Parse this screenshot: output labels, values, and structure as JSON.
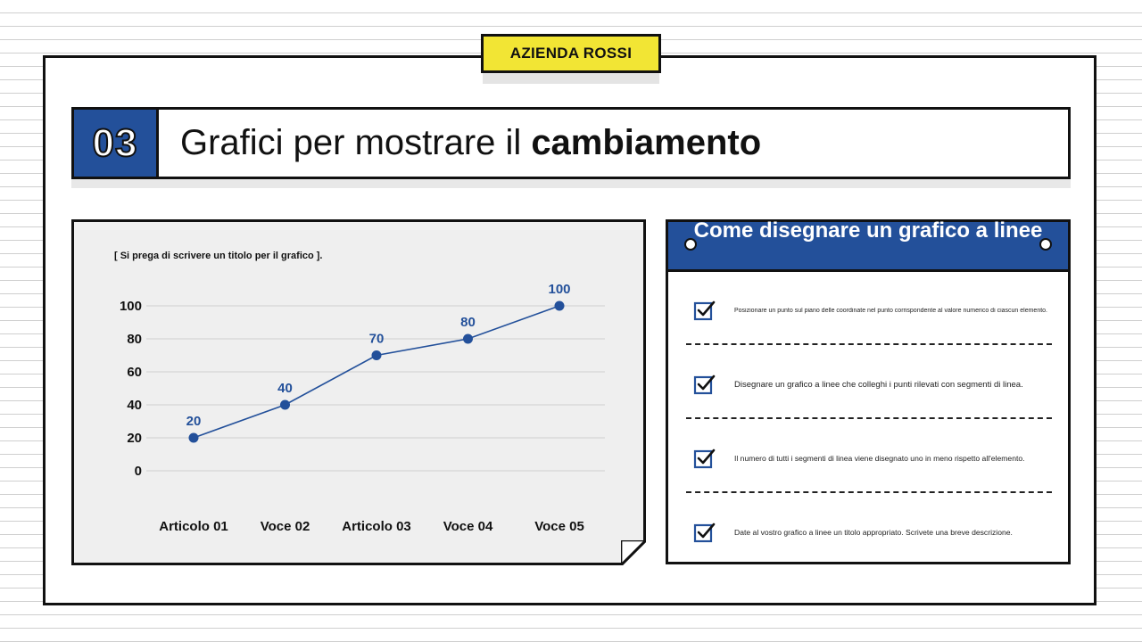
{
  "brand": {
    "label": "AZIENDA ROSSI"
  },
  "section": {
    "number": "03",
    "title_prefix": "Grafici per mostrare il",
    "title_bold": "cambiamento"
  },
  "chart_data": {
    "type": "line",
    "title": "[ Si prega di scrivere un titolo per il grafico ].",
    "categories": [
      "Articolo 01",
      "Voce 02",
      "Articolo 03",
      "Voce 04",
      "Voce 05"
    ],
    "series": [
      {
        "values": [
          20,
          40,
          70,
          80,
          100
        ]
      }
    ],
    "yticks": [
      0,
      20,
      40,
      60,
      80,
      100
    ],
    "ylim": [
      0,
      100
    ],
    "grid": true,
    "line_color": "#23509a",
    "label_color": "#23509a"
  },
  "info": {
    "heading": "Come disegnare un grafico a linee",
    "items": [
      {
        "text": "Posizionare un punto sul piano delle coordinate nel punto corrispondente al valore numerico di ciascun elemento.",
        "icon": "checkbox-checked-icon"
      },
      {
        "text": "Disegnare un grafico a linee che colleghi i punti rilevati con segmenti di linea.",
        "icon": "checkbox-checked-icon"
      },
      {
        "text": "Il numero di tutti i segmenti di linea viene disegnato uno in meno rispetto all'elemento.",
        "icon": "checkbox-checked-icon"
      },
      {
        "text": "Date al vostro grafico a linee un titolo appropriato. Scrivete una breve descrizione.",
        "icon": "checkbox-checked-icon"
      }
    ]
  },
  "colors": {
    "accent_blue": "#23509a",
    "brand_yellow": "#f2e534",
    "ink": "#111111"
  }
}
